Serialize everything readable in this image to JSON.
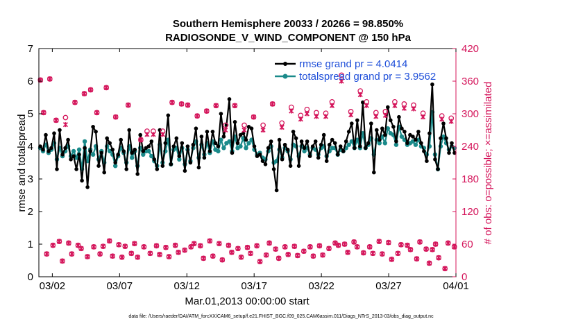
{
  "chart_data": {
    "type": "line",
    "title_line1": "Southern Hemisphere 20033 / 20266 = 98.850%",
    "title_line2": "RADIOSONDE_V_WIND_COMPONENT @ 150 hPa",
    "xlabel": "Mar.01,2013 00:00:00 start",
    "ylabel_left": "rmse and totalspread",
    "ylabel_right": "# of obs: o=possible; ×=assimilated",
    "footer": "data file: /Users/raeder/DAI/ATM_forcXX/CAM6_setup/f.e21.FHIST_BGC.f09_025.CAM6assim.011/Diags_NTrS_2013-03/obs_diag_output.nc",
    "x_range_days": [
      0,
      31
    ],
    "ylim_left": [
      0,
      7
    ],
    "ylim_right": [
      0,
      420
    ],
    "x_ticks": [
      {
        "day": 1,
        "label": "03/02"
      },
      {
        "day": 6,
        "label": "03/07"
      },
      {
        "day": 11,
        "label": "03/12"
      },
      {
        "day": 16,
        "label": "03/17"
      },
      {
        "day": 21,
        "label": "03/22"
      },
      {
        "day": 26,
        "label": "03/27"
      },
      {
        "day": 31,
        "label": "04/01"
      }
    ],
    "y_ticks_left": [
      "0",
      "1",
      "2",
      "3",
      "4",
      "5",
      "6",
      "7"
    ],
    "y_ticks_right": [
      "0",
      "60",
      "120",
      "180",
      "240",
      "300",
      "360",
      "420"
    ],
    "colors": {
      "rmse": "#000000",
      "spread": "#1a8a8a",
      "obs": "#d4145a",
      "legend_text": "#1f4fd9"
    },
    "series": [
      {
        "name": "rmse grand pr = 4.0414",
        "values": [
          4.0,
          3.9,
          4.35,
          3.85,
          3.95,
          4.4,
          3.3,
          4.5,
          3.75,
          3.95,
          4.2,
          3.6,
          3.7,
          3.3,
          3.75,
          2.95,
          3.95,
          2.75,
          3.85,
          4.6,
          4.45,
          3.4,
          3.8,
          3.2,
          4.25,
          4.1,
          3.9,
          3.5,
          3.75,
          4.2,
          3.85,
          3.3,
          4.5,
          3.8,
          3.9,
          3.15,
          4.35,
          3.85,
          3.95,
          4.0,
          4.15,
          3.6,
          3.3,
          4.5,
          3.4,
          4.1,
          4.95,
          3.45,
          4.0,
          4.25,
          3.7,
          4.1,
          3.25,
          4.0,
          3.5,
          4.05,
          4.55,
          3.35,
          4.3,
          3.65,
          4.45,
          3.85,
          4.45,
          4.1,
          4.0,
          5.0,
          4.3,
          4.65,
          5.45,
          3.8,
          4.75,
          4.1,
          4.35,
          4.4,
          4.2,
          4.6,
          4.55,
          4.0,
          3.7,
          3.75,
          3.55,
          3.45,
          3.95,
          4.15,
          3.3,
          2.65,
          4.2,
          3.6,
          4.05,
          3.9,
          3.4,
          4.45,
          4.25,
          3.4,
          4.15,
          3.95,
          4.15,
          3.7,
          4.0,
          4.15,
          3.65,
          4.05,
          4.35,
          3.55,
          4.05,
          4.2,
          4.1,
          3.75,
          4.0,
          3.85,
          4.15,
          4.45,
          4.7,
          3.95,
          4.8,
          4.0,
          5.35,
          3.95,
          4.1,
          4.7,
          3.2,
          4.5,
          4.2,
          4.55,
          4.35,
          5.2,
          4.8,
          4.6,
          4.15,
          4.9,
          4.55,
          4.45,
          4.1,
          4.35,
          4.3,
          4.2,
          4.45,
          4.1,
          3.85,
          3.55,
          4.4,
          5.9,
          3.6,
          3.3,
          4.25,
          4.7,
          4.25,
          3.8,
          4.1,
          3.8
        ]
      },
      {
        "name": "totalspread grand pr = 3.9562",
        "values": [
          3.95,
          3.85,
          4.05,
          3.8,
          3.9,
          4.1,
          3.6,
          3.95,
          3.7,
          3.85,
          4.0,
          3.7,
          3.85,
          3.65,
          3.9,
          3.3,
          4.15,
          3.55,
          3.9,
          3.75,
          4.0,
          3.6,
          3.85,
          3.5,
          4.0,
          3.85,
          3.75,
          3.4,
          3.7,
          3.95,
          3.8,
          3.5,
          4.0,
          3.65,
          3.85,
          3.4,
          3.95,
          3.75,
          3.85,
          3.85,
          3.7,
          3.55,
          3.4,
          4.05,
          3.5,
          3.85,
          4.2,
          3.45,
          3.9,
          3.95,
          3.6,
          3.95,
          3.45,
          3.9,
          3.55,
          3.95,
          4.15,
          3.65,
          4.05,
          3.75,
          4.1,
          3.8,
          4.15,
          3.9,
          3.85,
          4.2,
          3.95,
          4.1,
          4.15,
          3.85,
          4.3,
          3.95,
          4.0,
          4.25,
          3.95,
          4.1,
          4.2,
          3.9,
          3.75,
          3.8,
          3.65,
          3.6,
          3.85,
          4.0,
          3.5,
          3.55,
          3.9,
          3.65,
          3.95,
          3.85,
          3.6,
          4.05,
          4.0,
          3.7,
          4.0,
          3.85,
          3.95,
          3.75,
          3.95,
          3.9,
          3.75,
          3.95,
          4.0,
          3.7,
          3.85,
          3.95,
          3.95,
          3.75,
          3.9,
          3.85,
          3.95,
          4.05,
          4.15,
          3.95,
          4.2,
          3.95,
          4.4,
          3.95,
          4.05,
          4.25,
          3.75,
          4.2,
          4.1,
          4.3,
          4.1,
          4.55,
          4.4,
          4.35,
          4.05,
          4.6,
          4.3,
          4.2,
          4.05,
          4.1,
          4.15,
          4.05,
          4.2,
          4.0,
          3.95,
          3.75,
          4.0,
          5.05,
          3.75,
          3.3,
          4.0,
          4.3,
          4.1,
          3.9,
          4.0,
          3.95
        ]
      },
      {
        "name": "obs possible",
        "marker": "o",
        "axis": "right",
        "values": [
          362,
          302,
          42,
          364,
          58,
          288,
          65,
          29,
          293,
          62,
          42,
          321,
          58,
          52,
          337,
          37,
          344,
          55,
          302,
          42,
          56,
          348,
          66,
          38,
          294,
          59,
          36,
          56,
          316,
          43,
          61,
          36,
          252,
          55,
          268,
          43,
          268,
          57,
          41,
          268,
          54,
          37,
          321,
          58,
          45,
          318,
          49,
          316,
          55,
          61,
          296,
          57,
          34,
          305,
          66,
          38,
          315,
          61,
          31,
          279,
          58,
          45,
          315,
          52,
          36,
          279,
          54,
          43,
          294,
          57,
          28,
          279,
          40,
          62,
          318,
          51,
          34,
          283,
          55,
          41,
          312,
          56,
          39,
          297,
          47,
          308,
          55,
          38,
          302,
          57,
          40,
          301,
          52,
          322,
          62,
          58,
          371,
          60,
          45,
          304,
          64,
          55,
          342,
          44,
          322,
          55,
          43,
          302,
          65,
          42,
          304,
          63,
          32,
          322,
          43,
          59,
          318,
          58,
          50,
          316,
          33,
          64,
          301,
          51,
          25,
          50,
          60,
          35,
          296,
          15,
          62,
          292,
          55
        ]
      },
      {
        "name": "obs assimilated",
        "marker": "x",
        "axis": "right",
        "values": [
          362,
          302,
          42,
          364,
          58,
          288,
          65,
          29,
          280,
          62,
          42,
          321,
          58,
          52,
          337,
          37,
          344,
          55,
          302,
          42,
          56,
          348,
          66,
          38,
          294,
          59,
          36,
          56,
          316,
          43,
          61,
          36,
          252,
          55,
          262,
          43,
          262,
          57,
          41,
          262,
          54,
          37,
          321,
          58,
          45,
          318,
          49,
          316,
          55,
          61,
          296,
          57,
          34,
          305,
          66,
          38,
          315,
          61,
          31,
          270,
          58,
          45,
          315,
          52,
          36,
          270,
          54,
          43,
          294,
          57,
          28,
          270,
          40,
          62,
          318,
          51,
          34,
          275,
          55,
          41,
          305,
          56,
          39,
          290,
          47,
          300,
          55,
          38,
          295,
          57,
          40,
          295,
          52,
          315,
          62,
          58,
          360,
          60,
          45,
          298,
          64,
          55,
          335,
          44,
          315,
          55,
          43,
          295,
          65,
          42,
          297,
          63,
          32,
          315,
          43,
          59,
          310,
          58,
          50,
          309,
          33,
          64,
          294,
          51,
          25,
          50,
          60,
          35,
          290,
          15,
          62,
          286,
          55
        ]
      }
    ]
  }
}
